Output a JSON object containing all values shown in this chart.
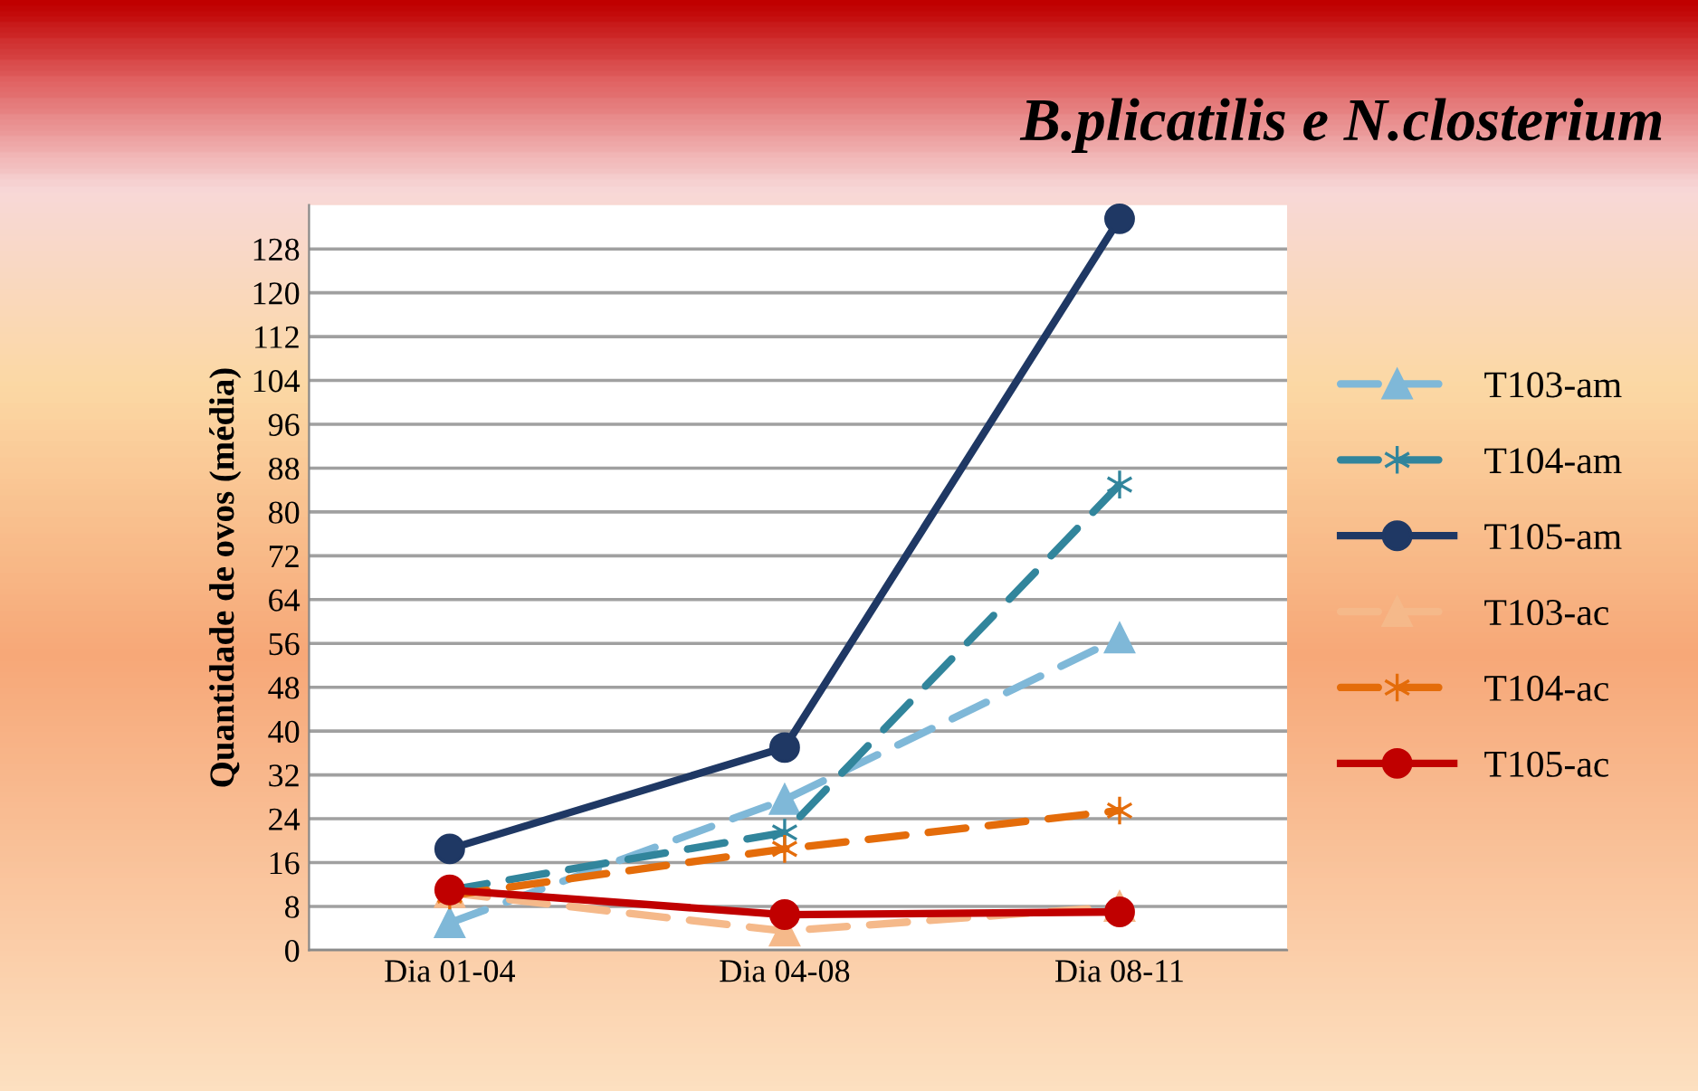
{
  "chart_data": {
    "type": "line",
    "title": "B.plicatilis e N.closterium",
    "ylabel": "Quantidade de ovos (média)",
    "categories": [
      "Dia 01-04",
      "Dia 04-08",
      "Dia 08-11"
    ],
    "series": [
      {
        "name": "T103-am",
        "color": "#7fb8d8",
        "marker": "triangle",
        "line_style": "dashed",
        "values": [
          5,
          27.5,
          57
        ]
      },
      {
        "name": "T104-am",
        "color": "#31859c",
        "marker": "cross",
        "line_style": "dashed",
        "values": [
          11,
          21.5,
          85
        ]
      },
      {
        "name": "T105-am",
        "color": "#1f3864",
        "marker": "circle",
        "line_style": "solid",
        "values": [
          18.5,
          37,
          133.5
        ]
      },
      {
        "name": "T103-ac",
        "color": "#f5b98a",
        "marker": "triangle",
        "line_style": "dashed",
        "values": [
          10.5,
          3.5,
          8
        ]
      },
      {
        "name": "T104-ac",
        "color": "#e46c0a",
        "marker": "cross",
        "line_style": "dashed",
        "values": [
          10,
          18.5,
          25.5
        ]
      },
      {
        "name": "T105-ac",
        "color": "#c00000",
        "marker": "circle",
        "line_style": "solid",
        "values": [
          11,
          6.5,
          7
        ]
      }
    ],
    "ylim": [
      0,
      136
    ],
    "yticks": [
      0,
      8,
      16,
      24,
      32,
      40,
      48,
      56,
      64,
      72,
      80,
      88,
      96,
      104,
      112,
      120,
      128
    ],
    "grid": "y",
    "legend": "right"
  }
}
